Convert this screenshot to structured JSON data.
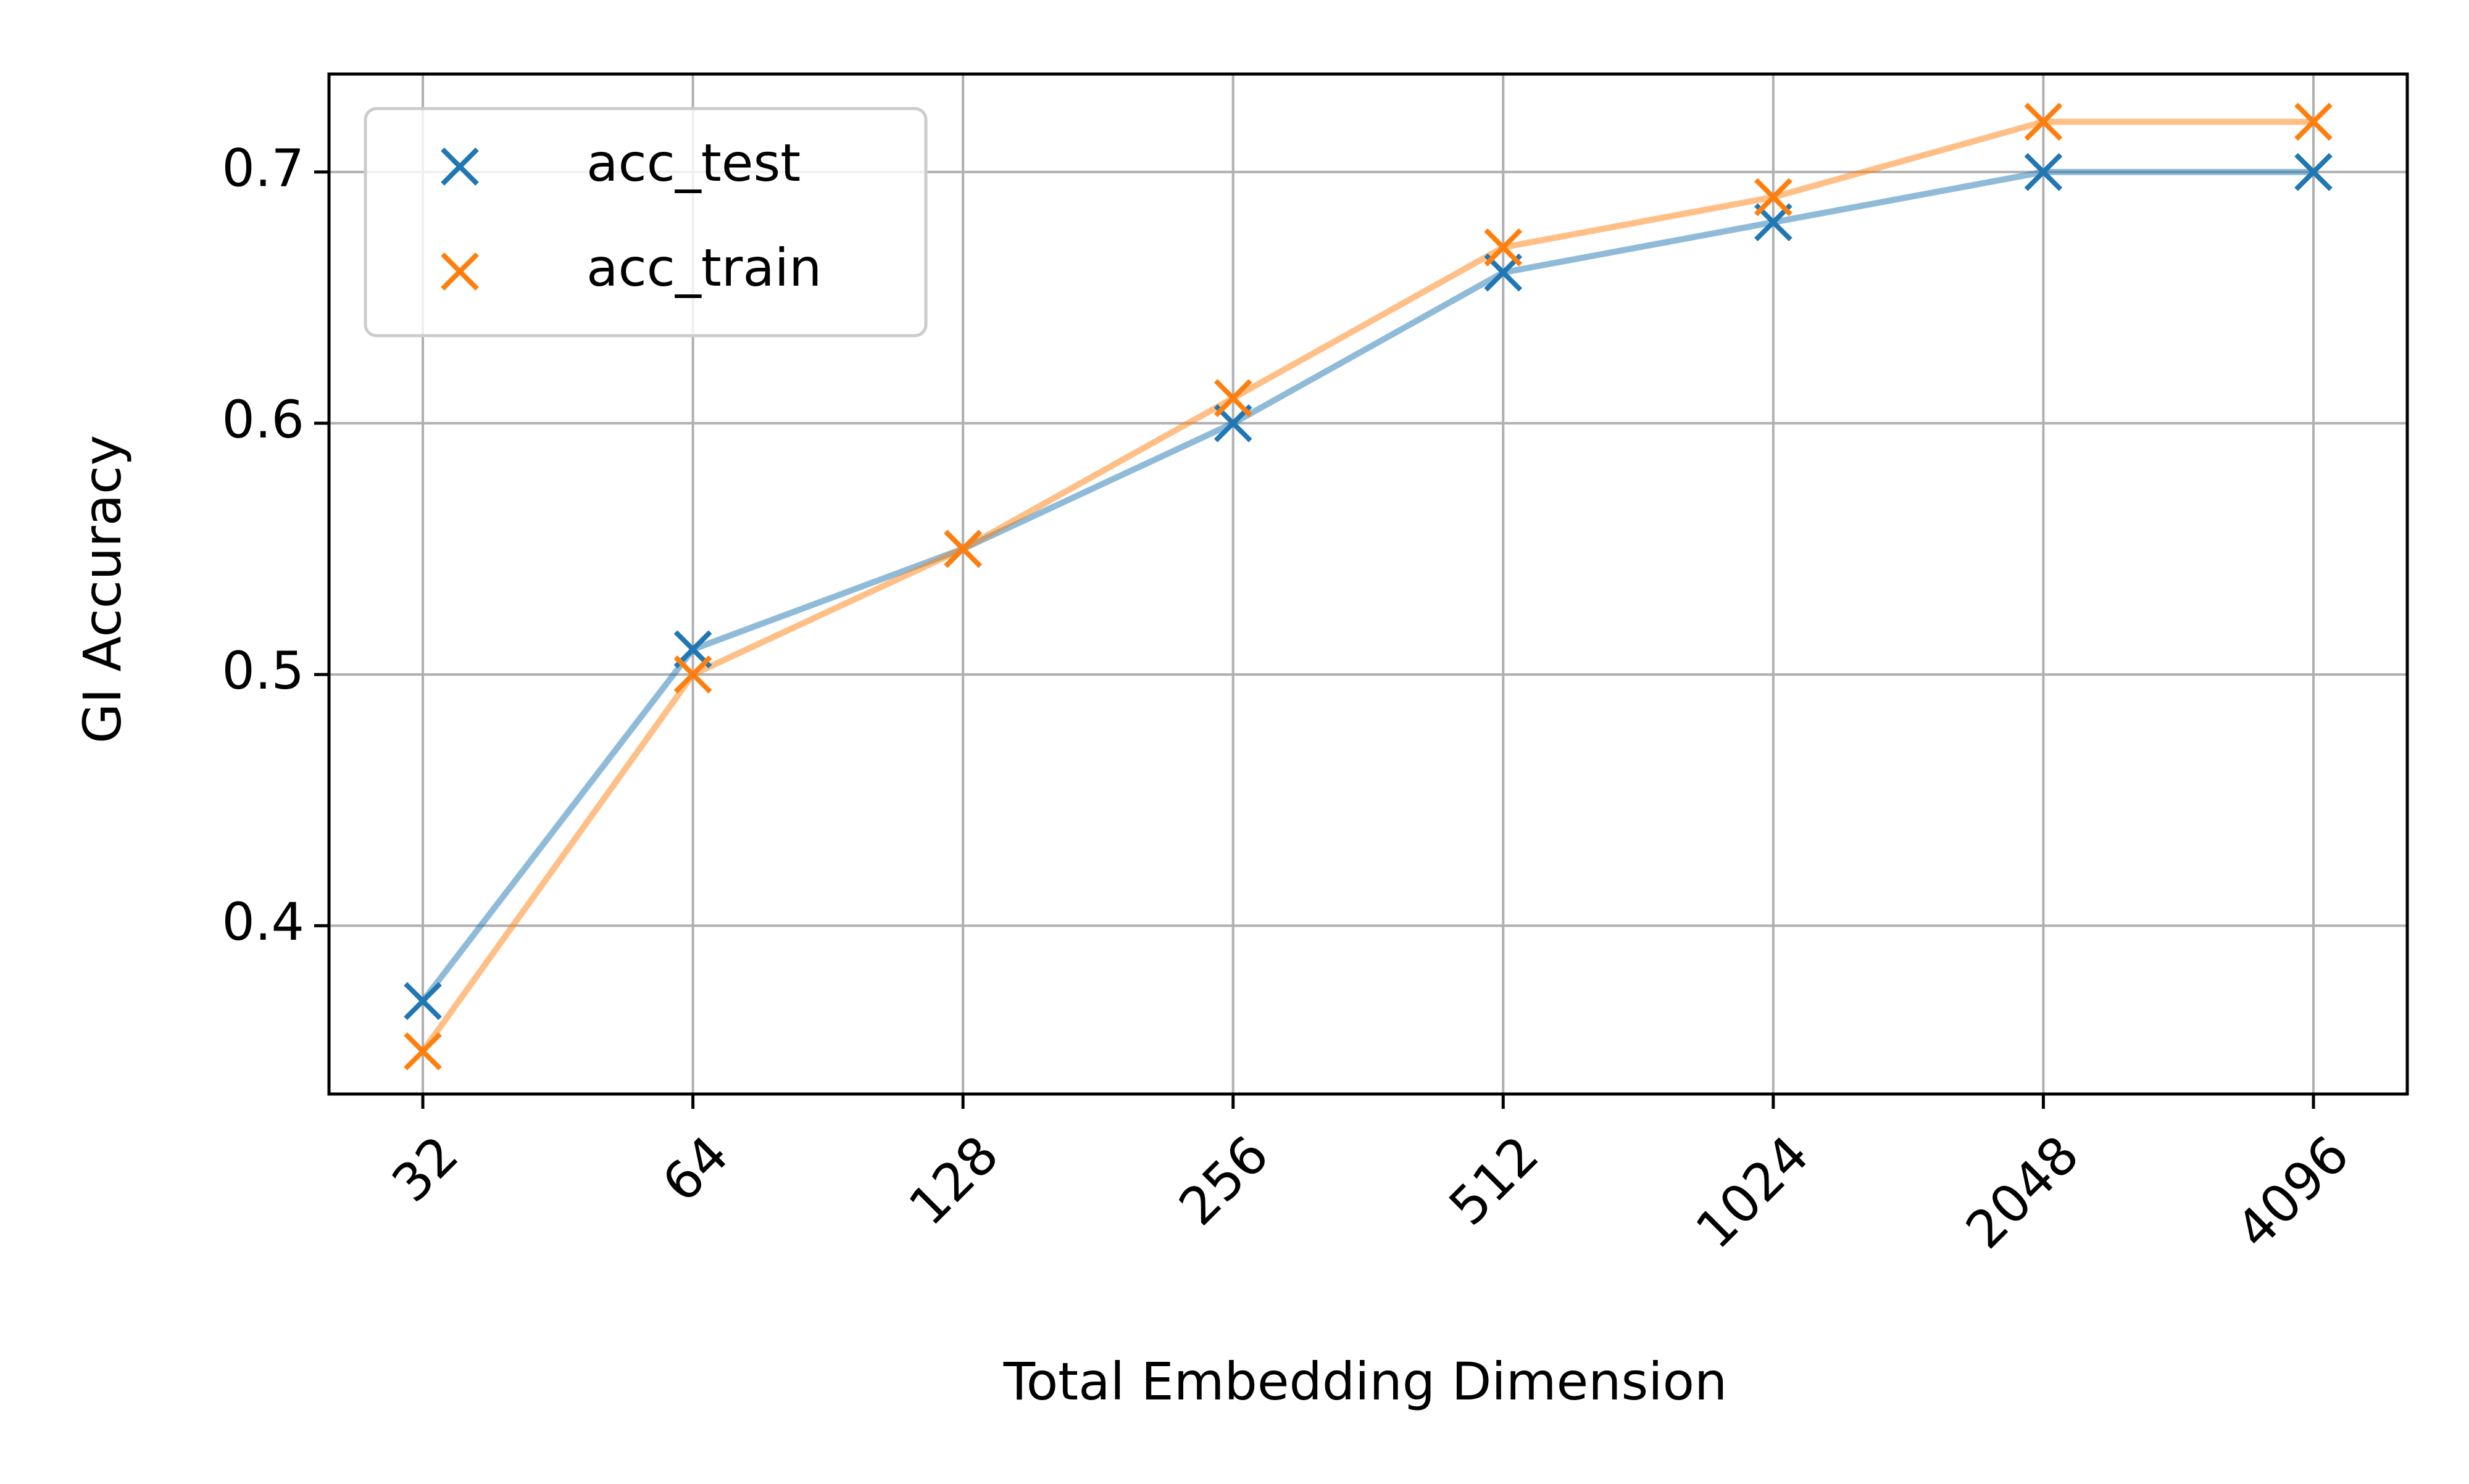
{
  "chart_data": {
    "type": "line",
    "title": "",
    "xlabel": "Total Embedding Dimension",
    "ylabel": "GI Accuracy",
    "x": [
      "32",
      "64",
      "128",
      "256",
      "512",
      "1024",
      "2048",
      "4096"
    ],
    "xscale": "log2 (categorical ticks)",
    "ylim": [
      0.333,
      0.739
    ],
    "yticks": [
      "0.4",
      "0.5",
      "0.6",
      "0.7"
    ],
    "grid": true,
    "legend_position": "top-left",
    "marker": "x",
    "series": [
      {
        "name": "acc_test",
        "color": "#1f77b4",
        "values": [
          0.37,
          0.51,
          0.55,
          0.6,
          0.66,
          0.68,
          0.7,
          0.7
        ]
      },
      {
        "name": "acc_train",
        "color": "#ff7f0e",
        "values": [
          0.35,
          0.5,
          0.55,
          0.61,
          0.67,
          0.69,
          0.72,
          0.72
        ]
      }
    ]
  }
}
